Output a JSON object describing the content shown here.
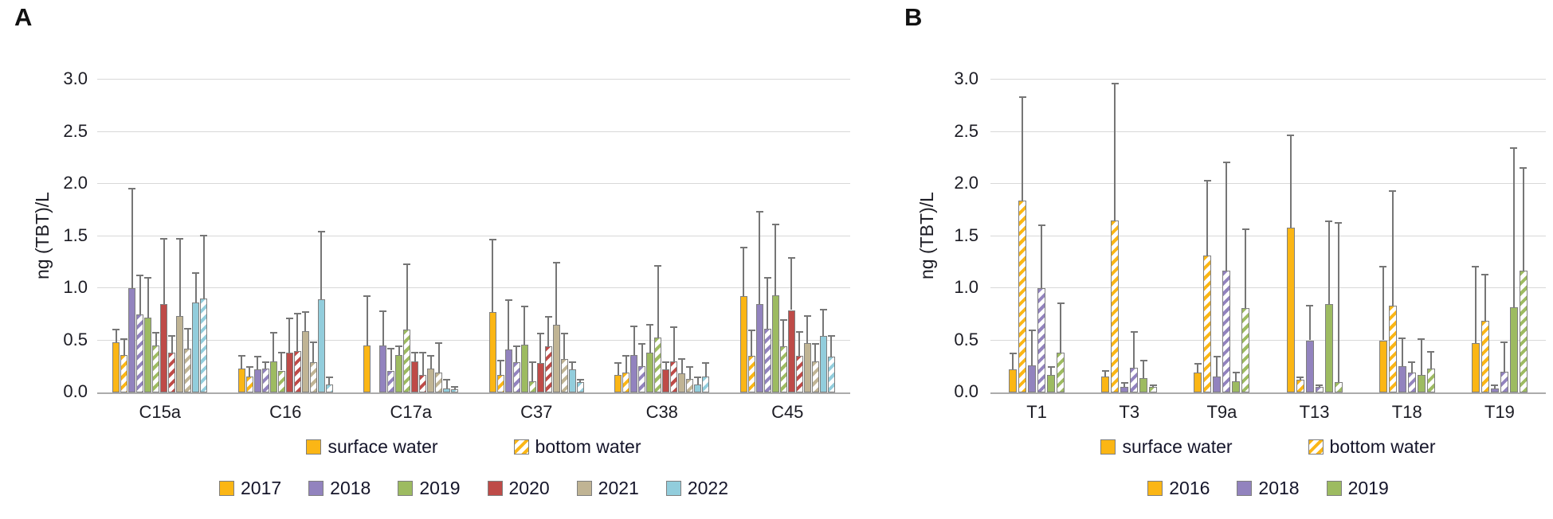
{
  "chart_data": [
    {
      "panel_label": "A",
      "type": "bar",
      "ylabel": "ng (TBT)/L",
      "ylim": [
        0,
        3.0
      ],
      "yticks": [
        "0.0",
        "0.5",
        "1.0",
        "1.5",
        "2.0",
        "2.5",
        "3.0"
      ],
      "grid": true,
      "legend_position": "bottom",
      "categories": [
        "C15a",
        "C16",
        "C17a",
        "C37",
        "C38",
        "C45"
      ],
      "legend": {
        "surface_label": "surface water",
        "bottom_label": "bottom water",
        "swatch_color": "#FBB615"
      },
      "years": [
        {
          "label": "2017",
          "color": "#FBB615"
        },
        {
          "label": "2018",
          "color": "#9283BE"
        },
        {
          "label": "2019",
          "color": "#9DBB61"
        },
        {
          "label": "2020",
          "color": "#BE4B48"
        },
        {
          "label": "2021",
          "color": "#C0B494"
        },
        {
          "label": "2022",
          "color": "#92CDDC"
        }
      ],
      "series": [
        {
          "year": "2017",
          "water": "surface",
          "values": [
            0.48,
            0.23,
            0.45,
            0.77,
            0.17,
            0.92
          ],
          "errors_upper": [
            0.61,
            0.36,
            0.93,
            1.47,
            0.29,
            1.4
          ]
        },
        {
          "year": "2017",
          "water": "bottom",
          "values": [
            0.36,
            0.15,
            0.0,
            0.17,
            0.19,
            0.35
          ],
          "errors_upper": [
            0.52,
            0.25,
            0.0,
            0.31,
            0.36,
            0.6
          ]
        },
        {
          "year": "2018",
          "water": "surface",
          "values": [
            1.0,
            0.22,
            0.45,
            0.41,
            0.36,
            0.85
          ],
          "errors_upper": [
            1.96,
            0.35,
            0.79,
            0.89,
            0.64,
            1.74
          ]
        },
        {
          "year": "2018",
          "water": "bottom",
          "values": [
            0.75,
            0.23,
            0.21,
            0.29,
            0.25,
            0.61
          ],
          "errors_upper": [
            1.13,
            0.3,
            0.43,
            0.45,
            0.47,
            1.11
          ]
        },
        {
          "year": "2019",
          "water": "surface",
          "values": [
            0.72,
            0.3,
            0.36,
            0.46,
            0.38,
            0.93
          ],
          "errors_upper": [
            1.11,
            0.58,
            0.45,
            0.83,
            0.66,
            1.62
          ]
        },
        {
          "year": "2019",
          "water": "bottom",
          "values": [
            0.45,
            0.21,
            0.6,
            0.11,
            0.53,
            0.44
          ],
          "errors_upper": [
            0.58,
            0.39,
            1.24,
            0.3,
            1.22,
            0.7
          ]
        },
        {
          "year": "2020",
          "water": "surface",
          "values": [
            0.85,
            0.38,
            0.3,
            0.28,
            0.22,
            0.79
          ],
          "errors_upper": [
            1.48,
            0.72,
            0.39,
            0.57,
            0.3,
            1.3
          ]
        },
        {
          "year": "2020",
          "water": "bottom",
          "values": [
            0.38,
            0.4,
            0.17,
            0.44,
            0.3,
            0.35
          ],
          "errors_upper": [
            0.55,
            0.76,
            0.39,
            0.73,
            0.63,
            0.59
          ]
        },
        {
          "year": "2021",
          "water": "surface",
          "values": [
            0.73,
            0.59,
            0.23,
            0.65,
            0.18,
            0.47
          ],
          "errors_upper": [
            1.48,
            0.78,
            0.36,
            1.25,
            0.33,
            0.74
          ]
        },
        {
          "year": "2021",
          "water": "bottom",
          "values": [
            0.42,
            0.29,
            0.19,
            0.32,
            0.13,
            0.3
          ],
          "errors_upper": [
            0.62,
            0.49,
            0.48,
            0.57,
            0.25,
            0.47
          ]
        },
        {
          "year": "2022",
          "water": "surface",
          "values": [
            0.86,
            0.89,
            0.04,
            0.22,
            0.08,
            0.54
          ],
          "errors_upper": [
            1.15,
            1.55,
            0.13,
            0.3,
            0.15,
            0.8
          ]
        },
        {
          "year": "2022",
          "water": "bottom",
          "values": [
            0.9,
            0.08,
            0.03,
            0.1,
            0.15,
            0.34
          ],
          "errors_upper": [
            1.51,
            0.15,
            0.06,
            0.13,
            0.29,
            0.55
          ]
        }
      ]
    },
    {
      "panel_label": "B",
      "type": "bar",
      "ylabel": "ng (TBT)/L",
      "ylim": [
        0,
        3.0
      ],
      "yticks": [
        "0.0",
        "0.5",
        "1.0",
        "1.5",
        "2.0",
        "2.5",
        "3.0"
      ],
      "grid": true,
      "legend_position": "bottom",
      "categories": [
        "T1",
        "T3",
        "T9a",
        "T13",
        "T18",
        "T19"
      ],
      "legend": {
        "surface_label": "surface water",
        "bottom_label": "bottom water",
        "swatch_color": "#FBB615"
      },
      "years": [
        {
          "label": "2016",
          "color": "#FBB615"
        },
        {
          "label": "2018",
          "color": "#9283BE"
        },
        {
          "label": "2019",
          "color": "#9DBB61"
        }
      ],
      "series": [
        {
          "year": "2016",
          "water": "surface",
          "values": [
            0.22,
            0.15,
            0.19,
            1.58,
            0.5,
            0.47
          ],
          "errors_upper": [
            0.38,
            0.21,
            0.28,
            2.47,
            1.21,
            1.21
          ]
        },
        {
          "year": "2016",
          "water": "bottom",
          "values": [
            1.84,
            1.65,
            1.31,
            0.12,
            0.83,
            0.69
          ],
          "errors_upper": [
            2.84,
            2.97,
            2.04,
            0.15,
            1.94,
            1.14
          ]
        },
        {
          "year": "2018",
          "water": "surface",
          "values": [
            0.26,
            0.05,
            0.15,
            0.5,
            0.25,
            0.04
          ],
          "errors_upper": [
            0.6,
            0.1,
            0.35,
            0.84,
            0.53,
            0.08
          ]
        },
        {
          "year": "2018",
          "water": "bottom",
          "values": [
            1.0,
            0.24,
            1.17,
            0.05,
            0.19,
            0.2
          ],
          "errors_upper": [
            1.61,
            0.59,
            2.21,
            0.08,
            0.3,
            0.49
          ]
        },
        {
          "year": "2019",
          "water": "surface",
          "values": [
            0.17,
            0.14,
            0.11,
            0.85,
            0.17,
            0.82
          ],
          "errors_upper": [
            0.25,
            0.31,
            0.2,
            1.65,
            0.52,
            2.35
          ]
        },
        {
          "year": "2019",
          "water": "bottom",
          "values": [
            0.38,
            0.05,
            0.81,
            0.1,
            0.23,
            1.17
          ],
          "errors_upper": [
            0.86,
            0.08,
            1.57,
            1.63,
            0.4,
            2.16
          ]
        }
      ]
    }
  ],
  "style": {
    "grid_color": "#d8d8d8",
    "error_bar_color": "#767676",
    "bar_border_color": "#7f7f7f"
  }
}
